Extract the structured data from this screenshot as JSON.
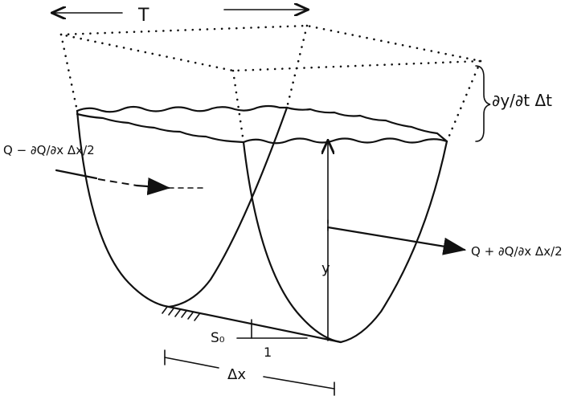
{
  "labels": {
    "top_width": "T",
    "depth": "y",
    "bed_slope": "S₀",
    "slope_run": "1",
    "reach_length": "Δx",
    "storage_rate": "∂y/∂t Δt",
    "inflow": "Q − ∂Q/∂x Δx/2",
    "outflow": "Q + ∂Q/∂x Δx/2"
  }
}
